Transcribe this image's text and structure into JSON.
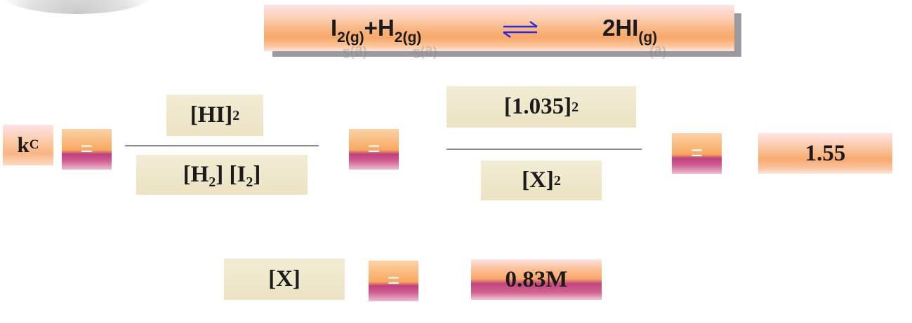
{
  "reaction": {
    "reactant1": "I",
    "reactant1_sub": "2(g)",
    "plus": "+",
    "reactant2": "H",
    "reactant2_sub": "2(g)",
    "arrow_icon": "equilibrium-arrow-icon",
    "product": "2HI",
    "product_sub": "(g)"
  },
  "kc_equation": {
    "kc_symbol": "k",
    "kc_sub": "C",
    "equals": "=",
    "expr_numerator": "[HI]",
    "expr_numerator_sup": "2",
    "expr_den_h2": "[H",
    "expr_den_h2_sub": "2",
    "expr_den_h2_close": "]",
    "expr_den_i2": "[I",
    "expr_den_i2_sub": "2",
    "expr_den_i2_close": "]",
    "sub_numerator": "[1.035]",
    "sub_numerator_sup": "2",
    "sub_denominator": "[X]",
    "sub_denominator_sup": "2",
    "kc_value": "1.55"
  },
  "solution": {
    "variable": "[X]",
    "equals": "=",
    "value": "0.83M"
  },
  "colors": {
    "banner_peach": "#f8a86a",
    "equals_magenta": "#c0407e",
    "box_cream": "#ece3c3",
    "arrow_blue": "#2a2ad8",
    "banner_shadow": "#9a9aa0"
  }
}
